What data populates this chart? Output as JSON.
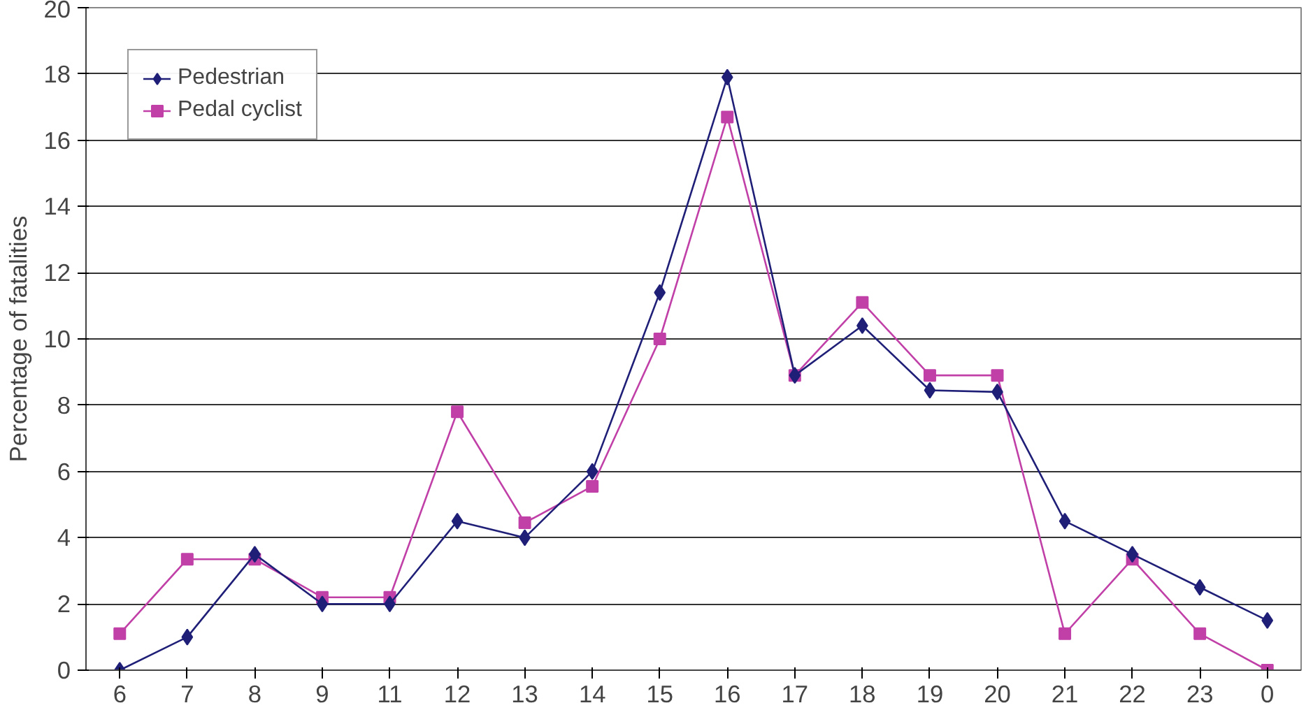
{
  "chart_data": {
    "type": "line",
    "ylabel": "Percentage of fatalities",
    "categories": [
      "6",
      "7",
      "8",
      "9",
      "11",
      "12",
      "13",
      "14",
      "15",
      "16",
      "17",
      "18",
      "19",
      "20",
      "21",
      "22",
      "23",
      "0"
    ],
    "series": [
      {
        "name": "Pedestrian",
        "color": "#1f1f78",
        "marker": "diamond",
        "values": [
          0,
          1.0,
          3.5,
          2.0,
          2.0,
          4.5,
          4.0,
          6.0,
          11.4,
          17.9,
          8.9,
          10.4,
          8.45,
          8.4,
          4.5,
          3.5,
          2.5,
          1.5
        ]
      },
      {
        "name": "Pedal cyclist",
        "color": "#c040a8",
        "marker": "square",
        "values": [
          1.1,
          3.35,
          3.35,
          2.2,
          2.2,
          7.8,
          4.45,
          5.55,
          10.0,
          16.7,
          8.9,
          11.1,
          8.9,
          8.9,
          1.1,
          3.35,
          1.1,
          0
        ]
      }
    ],
    "ylim": [
      0,
      20
    ],
    "yticks": [
      0,
      2,
      4,
      6,
      8,
      10,
      12,
      14,
      16,
      18,
      20
    ],
    "grid": "y",
    "legend": "top left",
    "line_style": "solid"
  }
}
